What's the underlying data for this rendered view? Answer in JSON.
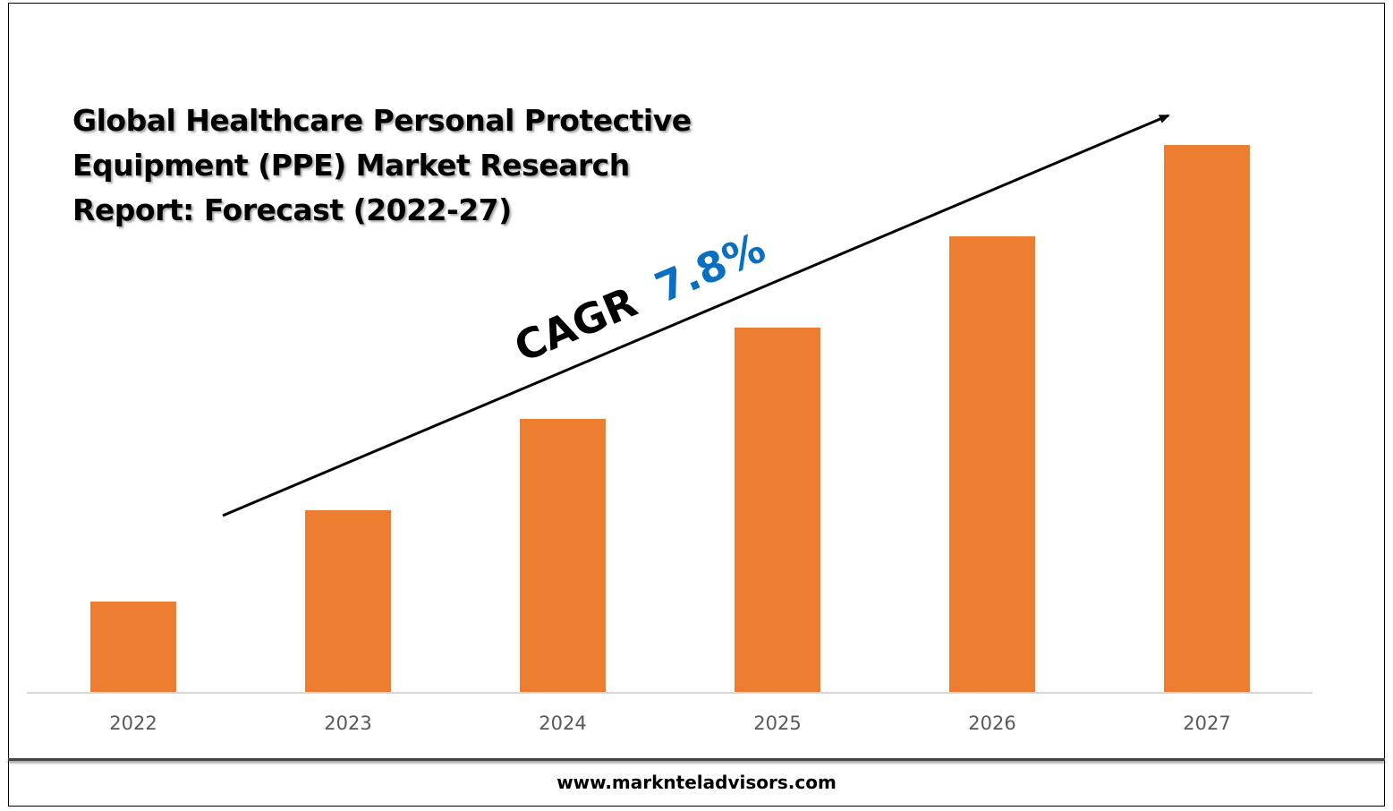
{
  "title": "Global Healthcare Personal Protective\nEquipment (PPE) Market Research\nReport: Forecast (2022-27)",
  "cagr": {
    "label": "CAGR",
    "value": "7.8%",
    "label_color": "#000000",
    "value_color": "#0b6fbf"
  },
  "footer": "www.marknteladvisors.com",
  "colors": {
    "bar": "#ed7d31",
    "axis": "#d9d9d9",
    "tick_label": "#595959"
  },
  "chart_data": {
    "type": "bar",
    "categories": [
      "2022",
      "2023",
      "2024",
      "2025",
      "2026",
      "2027"
    ],
    "values": [
      1.0,
      2.0,
      3.0,
      4.0,
      5.0,
      6.0
    ],
    "ylim": [
      0,
      6.0
    ],
    "grid": false,
    "xlabel": "",
    "ylabel": ""
  }
}
